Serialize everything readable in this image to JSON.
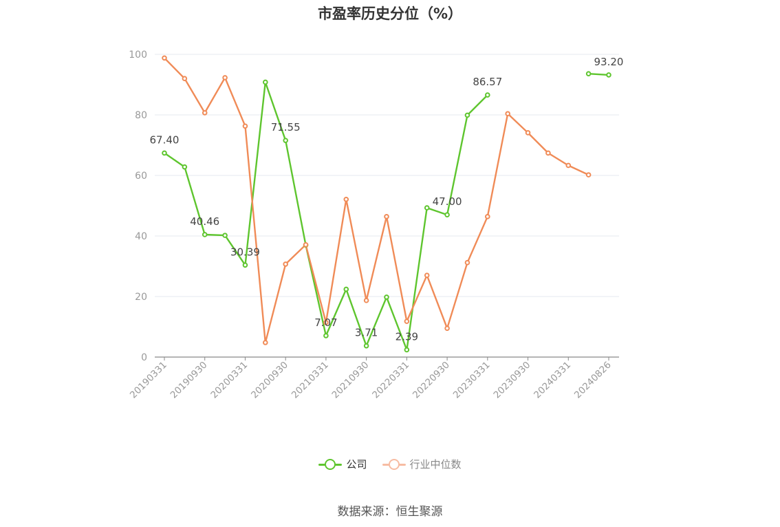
{
  "chart_data": {
    "type": "line",
    "title": "市盈率历史分位（%）",
    "x": [
      "20190331",
      "20190630",
      "20190930",
      "20191231",
      "20200331",
      "20200630",
      "20200930",
      "20201231",
      "20210331",
      "20210630",
      "20210930",
      "20211231",
      "20220331",
      "20220630",
      "20220930",
      "20221231",
      "20230331",
      "20230630",
      "20230930",
      "20231231",
      "20240331",
      "20240630",
      "20240826"
    ],
    "x_tick_labels": [
      "20190331",
      "20190930",
      "20200331",
      "20200930",
      "20210331",
      "20210930",
      "20220331",
      "20220930",
      "20230331",
      "20230930",
      "20240331",
      "20240826"
    ],
    "ylim": [
      0,
      100
    ],
    "y_ticks": [
      0,
      20,
      40,
      60,
      80,
      100
    ],
    "grid": true,
    "legend_position": "bottom",
    "series": [
      {
        "name": "公司",
        "color": "#5ec52e",
        "values": [
          67.4,
          62.8,
          40.46,
          40.2,
          30.39,
          90.8,
          71.55,
          37.0,
          7.07,
          22.4,
          3.71,
          19.8,
          2.39,
          49.3,
          47.0,
          79.9,
          86.57,
          null,
          null,
          null,
          null,
          93.6,
          93.2
        ],
        "labeled": {
          "0": "67.40",
          "2": "40.46",
          "4": "30.39",
          "6": "71.55",
          "8": "7.07",
          "10": "3.71",
          "12": "2.39",
          "14": "47.00",
          "16": "86.57",
          "22": "93.20"
        }
      },
      {
        "name": "行业中位数",
        "color": "#f08b57",
        "values": [
          98.8,
          92.0,
          80.7,
          92.3,
          76.3,
          4.8,
          30.7,
          37.1,
          11.4,
          52.1,
          18.7,
          46.4,
          11.8,
          27.0,
          9.5,
          31.2,
          46.4,
          80.4,
          74.1,
          67.4,
          63.3,
          60.2,
          null
        ]
      }
    ],
    "source": "数据来源：恒生聚源"
  }
}
